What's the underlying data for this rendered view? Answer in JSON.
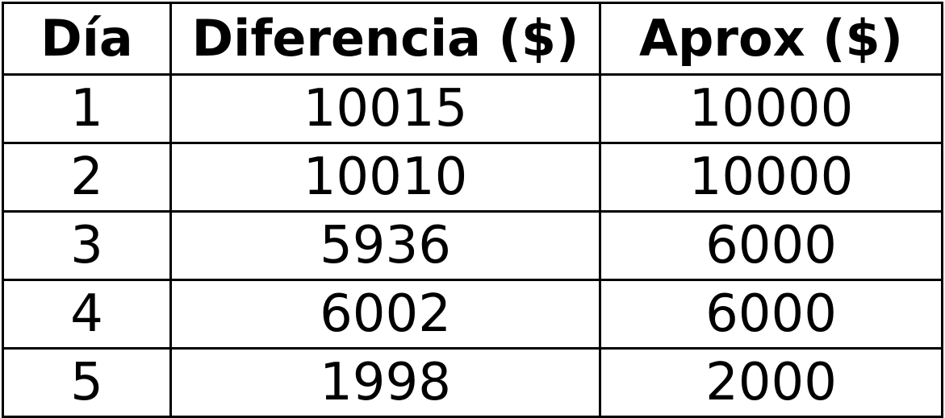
{
  "table": {
    "headers": [
      "Día",
      "Diferencia ($)",
      "Aprox ($)"
    ],
    "rows": [
      [
        "1",
        "10015",
        "10000"
      ],
      [
        "2",
        "10010",
        "10000"
      ],
      [
        "3",
        "5936",
        "6000"
      ],
      [
        "4",
        "6002",
        "6000"
      ],
      [
        "5",
        "1998",
        "2000"
      ]
    ]
  }
}
